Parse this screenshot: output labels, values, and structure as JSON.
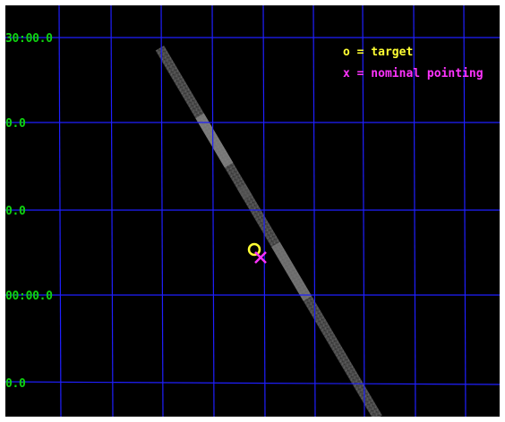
{
  "view": {
    "background_color": "#000000",
    "grid_color": "#1f1fff",
    "label_color": "#0fd30f"
  },
  "dec_labels": [
    "30:00.0",
    "0.0",
    "0.0",
    "00:00.0",
    "0.0"
  ],
  "legend": {
    "target": "o = target",
    "nominal": "x = nominal pointing",
    "target_color": "#ffff33",
    "nominal_color": "#ff33ff"
  },
  "markers": {
    "target_symbol": "target-circle",
    "nominal_symbol": "nominal-pointing-cross"
  }
}
